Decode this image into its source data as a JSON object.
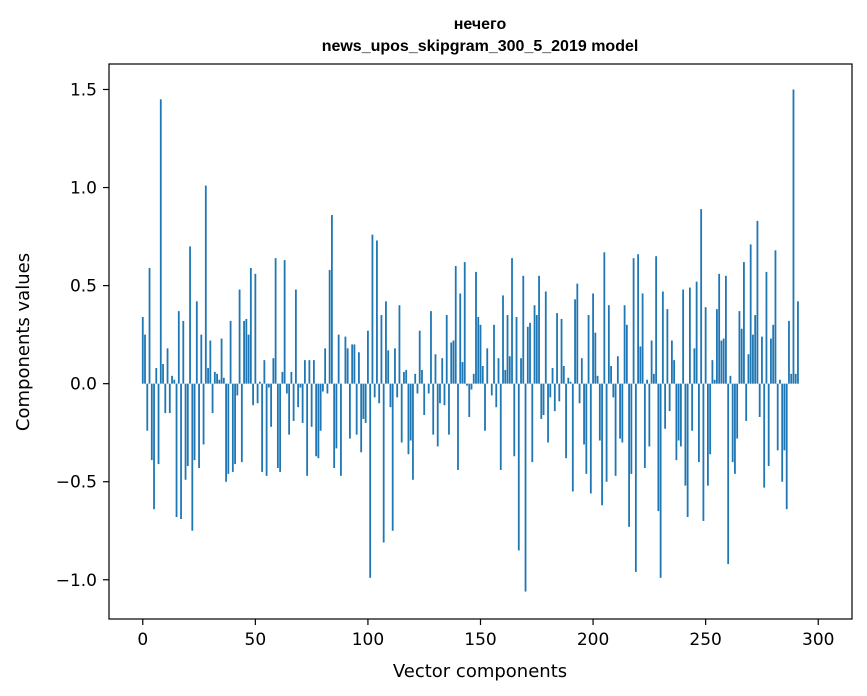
{
  "chart_data": {
    "type": "bar",
    "title": "нечего",
    "subtitle": "news_upos_skipgram_300_5_2019 model",
    "xlabel": "Vector components",
    "ylabel": "Components values",
    "xlim": [
      -15,
      315
    ],
    "ylim": [
      -1.2,
      1.63
    ],
    "xticks": [
      0,
      50,
      100,
      150,
      200,
      250,
      300
    ],
    "xtick_labels": [
      "0",
      "50",
      "100",
      "150",
      "200",
      "250",
      "300"
    ],
    "yticks": [
      -1.0,
      -0.5,
      0.0,
      0.5,
      1.0,
      1.5
    ],
    "ytick_labels": [
      "−1.0",
      "−0.5",
      "0.0",
      "0.5",
      "1.0",
      "1.5"
    ],
    "grid": false,
    "bar_color": "#1f77b4",
    "values": [
      0.34,
      0.25,
      -0.24,
      0.59,
      -0.39,
      -0.64,
      0.08,
      -0.41,
      1.45,
      0.1,
      -0.15,
      0.18,
      -0.15,
      0.04,
      0.02,
      -0.68,
      0.37,
      -0.69,
      0.32,
      -0.49,
      -0.42,
      0.7,
      -0.75,
      -0.39,
      0.42,
      -0.43,
      0.25,
      -0.31,
      1.01,
      0.08,
      0.22,
      -0.15,
      0.06,
      0.05,
      0.02,
      0.23,
      0.03,
      -0.5,
      -0.46,
      0.32,
      -0.45,
      -0.41,
      -0.06,
      0.48,
      -0.4,
      0.32,
      0.33,
      0.25,
      0.59,
      -0.11,
      0.56,
      -0.1,
      0.01,
      -0.45,
      0.12,
      -0.47,
      -0.02,
      -0.22,
      0.13,
      0.64,
      -0.43,
      -0.45,
      0.06,
      0.63,
      -0.05,
      -0.26,
      0.06,
      -0.19,
      0.48,
      -0.12,
      -0.02,
      -0.2,
      0.12,
      -0.47,
      0.12,
      -0.22,
      0.12,
      -0.37,
      -0.38,
      -0.24,
      -0.04,
      0.18,
      -0.05,
      0.58,
      0.86,
      -0.43,
      -0.33,
      0.25,
      -0.47,
      0.0,
      0.24,
      0.18,
      -0.28,
      0.2,
      0.2,
      -0.26,
      0.16,
      -0.35,
      -0.18,
      -0.2,
      0.27,
      -0.99,
      0.76,
      -0.07,
      0.73,
      -0.1,
      0.35,
      -0.81,
      0.42,
      0.17,
      -0.12,
      -0.75,
      0.18,
      -0.07,
      0.4,
      -0.3,
      0.06,
      0.07,
      -0.36,
      -0.29,
      -0.49,
      0.05,
      -0.05,
      0.27,
      0.07,
      -0.16,
      0.0,
      -0.05,
      0.37,
      -0.26,
      0.15,
      -0.32,
      -0.1,
      0.13,
      -0.11,
      0.35,
      -0.26,
      0.21,
      0.22,
      0.6,
      -0.44,
      0.46,
      0.11,
      0.62,
      -0.01,
      -0.17,
      -0.03,
      0.05,
      0.57,
      0.34,
      0.3,
      0.09,
      -0.24,
      0.18,
      0.0,
      -0.06,
      0.3,
      -0.12,
      0.13,
      -0.44,
      0.45,
      0.07,
      0.35,
      0.14,
      0.64,
      -0.37,
      0.34,
      -0.85,
      0.13,
      0.55,
      -1.06,
      0.29,
      0.31,
      -0.4,
      0.4,
      0.35,
      0.55,
      -0.18,
      -0.16,
      0.47,
      -0.3,
      -0.07,
      0.08,
      -0.14,
      0.36,
      -0.09,
      0.33,
      0.09,
      -0.38,
      0.03,
      0.01,
      -0.55,
      0.43,
      0.51,
      -0.1,
      0.13,
      -0.31,
      -0.46,
      0.35,
      -0.56,
      0.46,
      0.26,
      0.04,
      -0.29,
      -0.62,
      0.67,
      -0.5,
      0.4,
      0.09,
      -0.07,
      -0.47,
      0.14,
      -0.28,
      -0.3,
      0.4,
      0.3,
      -0.73,
      -0.46,
      0.64,
      -0.96,
      0.66,
      0.19,
      0.46,
      -0.43,
      0.02,
      -0.32,
      0.22,
      0.05,
      0.65,
      -0.65,
      -0.99,
      0.47,
      -0.23,
      0.38,
      -0.14,
      0.22,
      0.12,
      -0.39,
      -0.29,
      -0.32,
      0.48,
      -0.52,
      -0.68,
      0.49,
      -0.24,
      0.18,
      0.52,
      -0.4,
      0.89,
      -0.7,
      0.39,
      -0.52,
      -0.36,
      0.12,
      0.02,
      0.38,
      0.56,
      0.22,
      0.23,
      0.55,
      -0.92,
      0.04,
      -0.4,
      -0.46,
      -0.28,
      0.37,
      0.28,
      0.62,
      -0.19,
      0.15,
      0.71,
      0.25,
      0.35,
      0.83,
      -0.17,
      0.24,
      -0.53,
      0.57,
      -0.42,
      0.23,
      0.3,
      0.68,
      -0.34,
      0.02,
      -0.5,
      -0.34,
      -0.64,
      0.32,
      0.05,
      1.5,
      0.05,
      0.42
    ]
  }
}
